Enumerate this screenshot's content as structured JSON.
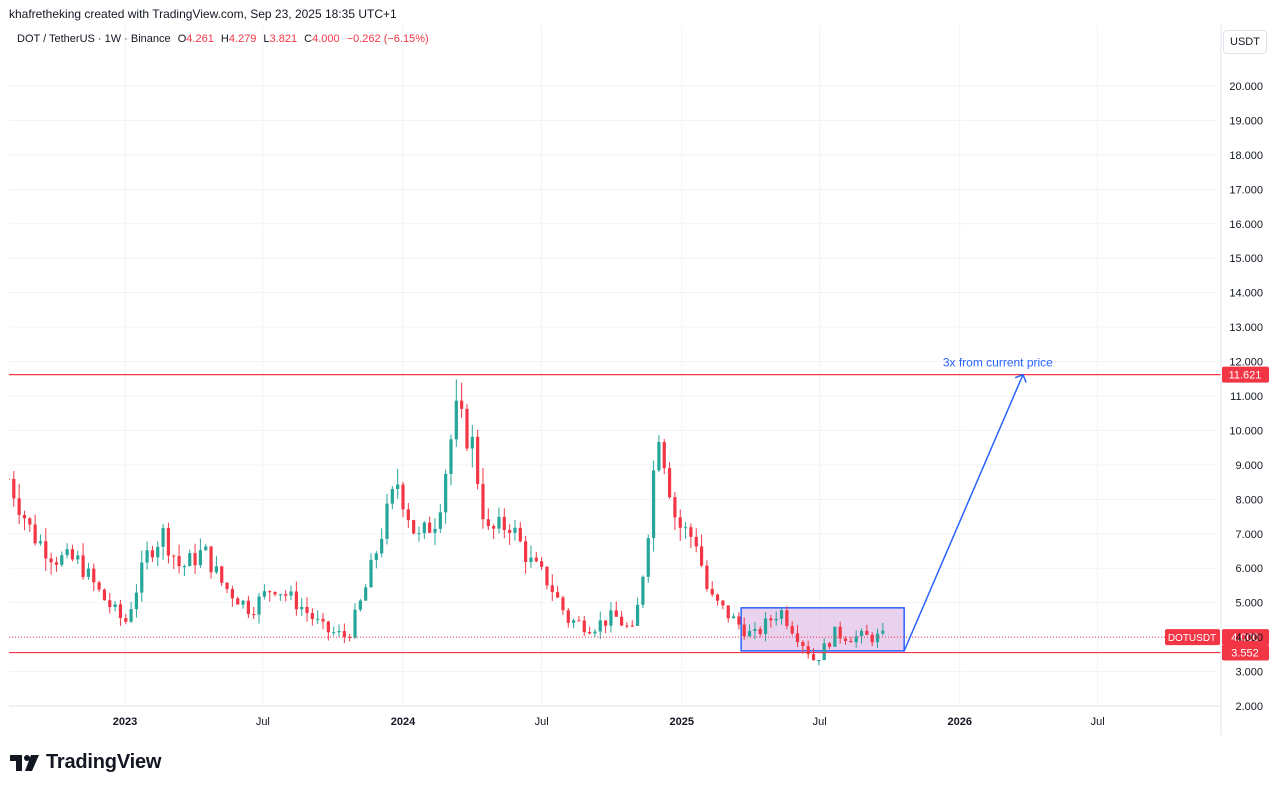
{
  "header": {
    "credit": "khafretheking created with TradingView.com, Sep 23, 2025 18:35 UTC+1"
  },
  "legend": {
    "symbol": "DOT / TetherUS · 1W · Binance",
    "o_label": "O",
    "o_value": "4.261",
    "h_label": "H",
    "h_value": "4.279",
    "l_label": "L",
    "l_value": "3.821",
    "c_label": "C",
    "c_value": "4.000",
    "change": "−0.262 (−6.15%)"
  },
  "currency_button": "USDT",
  "brand": {
    "name": "TradingView"
  },
  "colors": {
    "up": "#26a69a",
    "down": "#f23645",
    "level_line": "#f23645",
    "arrow": "#2962ff",
    "box_fill": "#e1bee7",
    "box_border": "#2962ff",
    "grid": "#f0f3fa"
  },
  "chart_data": {
    "type": "candlestick",
    "interval": "1W",
    "x_ticks": [
      {
        "label": "2023",
        "date": "2023-01-01",
        "bold": true
      },
      {
        "label": "Jul",
        "date": "2023-07-01",
        "bold": false
      },
      {
        "label": "2024",
        "date": "2024-01-01",
        "bold": true
      },
      {
        "label": "Jul",
        "date": "2024-07-01",
        "bold": false
      },
      {
        "label": "2025",
        "date": "2025-01-01",
        "bold": true
      },
      {
        "label": "Jul",
        "date": "2025-07-01",
        "bold": false
      },
      {
        "label": "2026",
        "date": "2026-01-01",
        "bold": true
      },
      {
        "label": "Jul",
        "date": "2026-07-01",
        "bold": false
      }
    ],
    "y_ticks": [
      "2.000",
      "3.000",
      "4.000",
      "5.000",
      "6.000",
      "7.000",
      "8.000",
      "9.000",
      "10.000",
      "11.000",
      "12.000",
      "13.000",
      "14.000",
      "15.000",
      "16.000",
      "17.000",
      "18.000",
      "19.000",
      "20.000"
    ],
    "y_range": [
      2.0,
      20.0
    ],
    "price_points": [
      {
        "date": "2022-08-01",
        "price": 8.6
      },
      {
        "date": "2022-09-01",
        "price": 7.0
      },
      {
        "date": "2022-10-01",
        "price": 6.3
      },
      {
        "date": "2022-11-01",
        "price": 6.2
      },
      {
        "date": "2022-12-01",
        "price": 5.2
      },
      {
        "date": "2023-01-01",
        "price": 4.4
      },
      {
        "date": "2023-02-01",
        "price": 6.5
      },
      {
        "date": "2023-02-20",
        "price": 7.0
      },
      {
        "date": "2023-03-15",
        "price": 6.0
      },
      {
        "date": "2023-04-15",
        "price": 6.5
      },
      {
        "date": "2023-05-10",
        "price": 5.5
      },
      {
        "date": "2023-06-15",
        "price": 4.8
      },
      {
        "date": "2023-07-15",
        "price": 5.5
      },
      {
        "date": "2023-08-20",
        "price": 4.9
      },
      {
        "date": "2023-09-20",
        "price": 4.2
      },
      {
        "date": "2023-10-20",
        "price": 4.0
      },
      {
        "date": "2023-11-10",
        "price": 5.2
      },
      {
        "date": "2023-12-10",
        "price": 7.5
      },
      {
        "date": "2023-12-25",
        "price": 8.5
      },
      {
        "date": "2024-01-20",
        "price": 6.8
      },
      {
        "date": "2024-02-15",
        "price": 7.5
      },
      {
        "date": "2024-03-10",
        "price": 10.5
      },
      {
        "date": "2024-04-01",
        "price": 9.6
      },
      {
        "date": "2024-04-20",
        "price": 7.0
      },
      {
        "date": "2024-05-20",
        "price": 7.3
      },
      {
        "date": "2024-06-15",
        "price": 6.2
      },
      {
        "date": "2024-07-10",
        "price": 5.6
      },
      {
        "date": "2024-08-05",
        "price": 4.5
      },
      {
        "date": "2024-09-05",
        "price": 4.3
      },
      {
        "date": "2024-10-05",
        "price": 4.6
      },
      {
        "date": "2024-10-30",
        "price": 4.1
      },
      {
        "date": "2024-11-15",
        "price": 6.5
      },
      {
        "date": "2024-12-01",
        "price": 10.2
      },
      {
        "date": "2024-12-25",
        "price": 7.3
      },
      {
        "date": "2025-01-20",
        "price": 6.8
      },
      {
        "date": "2025-02-05",
        "price": 5.2
      },
      {
        "date": "2025-03-10",
        "price": 4.5
      },
      {
        "date": "2025-04-05",
        "price": 4.0
      },
      {
        "date": "2025-05-10",
        "price": 4.8
      },
      {
        "date": "2025-06-10",
        "price": 3.8
      },
      {
        "date": "2025-06-25",
        "price": 3.3
      },
      {
        "date": "2025-07-20",
        "price": 4.1
      },
      {
        "date": "2025-08-15",
        "price": 4.0
      },
      {
        "date": "2025-09-23",
        "price": 4.0
      }
    ],
    "horizontal_levels": [
      {
        "label": "11.621",
        "value": 11.621
      },
      {
        "label": "3.552",
        "value": 3.552
      }
    ],
    "last_price": {
      "symbol": "DOTUSDT",
      "label": "4.000",
      "value": 4.0
    },
    "range_box": {
      "start_date": "2025-03-20",
      "end_date": "2025-10-20",
      "low": 3.6,
      "high": 4.85
    },
    "projection": {
      "from_date": "2025-10-20",
      "from_value": 3.6,
      "to_date": "2026-03-25",
      "to_value": 11.621
    },
    "annotation": {
      "text": "3x from current price",
      "date": "2026-02-20",
      "value": 12.0
    }
  }
}
